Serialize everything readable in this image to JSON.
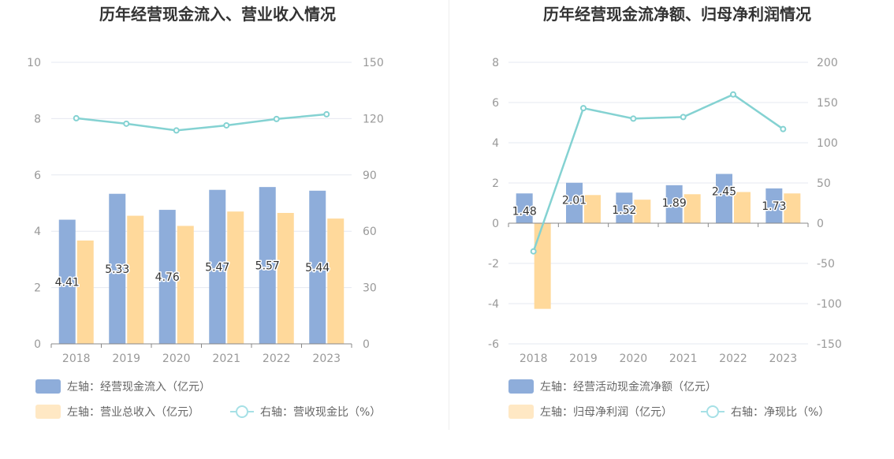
{
  "colors": {
    "bar_primary": "#8eadda",
    "bar_secondary": "#ffd99b",
    "line": "#84d2d2",
    "legend_swatch_primary": "#8eadda",
    "legend_swatch_secondary": "#ffe8c4",
    "legend_line": "#a6e0e6",
    "grid": "#e6e8f0",
    "axis": "#888888"
  },
  "chart_data": [
    {
      "type": "bar",
      "title": "历年经营现金流入、营业收入情况",
      "categories": [
        "2018",
        "2019",
        "2020",
        "2021",
        "2022",
        "2023"
      ],
      "left_axis": {
        "ylim": [
          0,
          10
        ],
        "ticks": [
          "0",
          "2",
          "4",
          "6",
          "8",
          "10"
        ]
      },
      "right_axis": {
        "ylim": [
          0,
          150
        ],
        "ticks": [
          "0",
          "30",
          "60",
          "90",
          "120",
          "150"
        ]
      },
      "grid": true,
      "legend_position": "bottom-left",
      "series": [
        {
          "name": "左轴：经营现金流入（亿元）",
          "kind": "bar",
          "axis": "left",
          "values": [
            4.41,
            5.33,
            4.76,
            5.47,
            5.57,
            5.44
          ],
          "labels": [
            "4.41",
            "5.33",
            "4.76",
            "5.47",
            "5.57",
            "5.44"
          ]
        },
        {
          "name": "左轴：营业总收入（亿元）",
          "kind": "bar",
          "axis": "left",
          "values": [
            3.67,
            4.55,
            4.19,
            4.7,
            4.65,
            4.45
          ]
        },
        {
          "name": "右轴：营收现金比（%）",
          "kind": "line",
          "axis": "right",
          "values": [
            120.2,
            117.3,
            113.7,
            116.4,
            119.8,
            122.3
          ]
        }
      ]
    },
    {
      "type": "bar",
      "title": "历年经营现金流净额、归母净利润情况",
      "categories": [
        "2018",
        "2019",
        "2020",
        "2021",
        "2022",
        "2023"
      ],
      "left_axis": {
        "ylim": [
          -6,
          8
        ],
        "ticks": [
          "-6",
          "-4",
          "-2",
          "0",
          "2",
          "4",
          "6",
          "8"
        ]
      },
      "right_axis": {
        "ylim": [
          -150,
          200
        ],
        "ticks": [
          "-150",
          "-100",
          "-50",
          "0",
          "50",
          "100",
          "150",
          "200"
        ]
      },
      "grid": true,
      "legend_position": "bottom-left",
      "series": [
        {
          "name": "左轴：经营活动现金流净额（亿元）",
          "kind": "bar",
          "axis": "left",
          "values": [
            1.48,
            2.01,
            1.52,
            1.89,
            2.45,
            1.73
          ],
          "labels": [
            "1.48",
            "2.01",
            "1.52",
            "1.89",
            "2.45",
            "1.73"
          ]
        },
        {
          "name": "左轴：归母净利润（亿元）",
          "kind": "bar",
          "axis": "left",
          "values": [
            -4.26,
            1.4,
            1.17,
            1.44,
            1.55,
            1.48
          ]
        },
        {
          "name": "右轴：净现比（%）",
          "kind": "line",
          "axis": "right",
          "values": [
            -35,
            143,
            130,
            132,
            160,
            117
          ]
        }
      ]
    }
  ]
}
